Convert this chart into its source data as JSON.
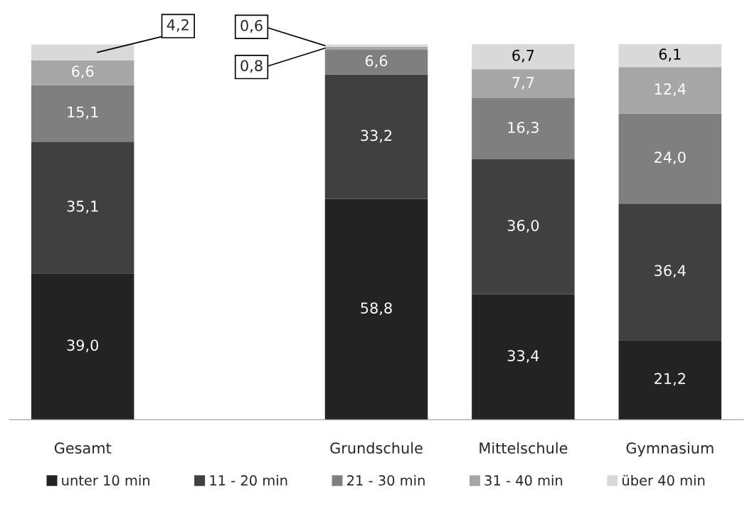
{
  "chart_data": {
    "type": "bar",
    "stacked": true,
    "legend": "bottom",
    "grid": false,
    "categories": [
      "Gesamt",
      null,
      "Grundschule",
      "Mittelschule",
      "Gymnasium"
    ],
    "series": [
      {
        "name": "unter 10 min",
        "color": "#232323",
        "values": [
          39.0,
          null,
          58.8,
          33.4,
          21.2
        ],
        "value_labels": [
          "39,0",
          null,
          "58,8",
          "33,4",
          "21,2"
        ]
      },
      {
        "name": "11 - 20 min",
        "color": "#404040",
        "values": [
          35.1,
          null,
          33.2,
          36.0,
          36.4
        ],
        "value_labels": [
          "35,1",
          null,
          "33,2",
          "36,0",
          "36,4"
        ]
      },
      {
        "name": "21 - 30 min",
        "color": "#7f7f7f",
        "values": [
          15.1,
          null,
          6.6,
          16.3,
          24.0
        ],
        "value_labels": [
          "15,1",
          null,
          "6,6",
          "16,3",
          "24,0"
        ]
      },
      {
        "name": "31 - 40 min",
        "color": "#a6a6a6",
        "values": [
          6.6,
          null,
          0.8,
          7.7,
          12.4
        ],
        "value_labels": [
          "6,6",
          null,
          "0,8",
          "7,7",
          "12,4"
        ]
      },
      {
        "name": "über 40 min",
        "color": "#d9d9d9",
        "values": [
          4.2,
          null,
          0.6,
          6.7,
          6.1
        ],
        "value_labels": [
          "4,2",
          null,
          "0,6",
          "6,7",
          "6,1"
        ]
      }
    ]
  }
}
